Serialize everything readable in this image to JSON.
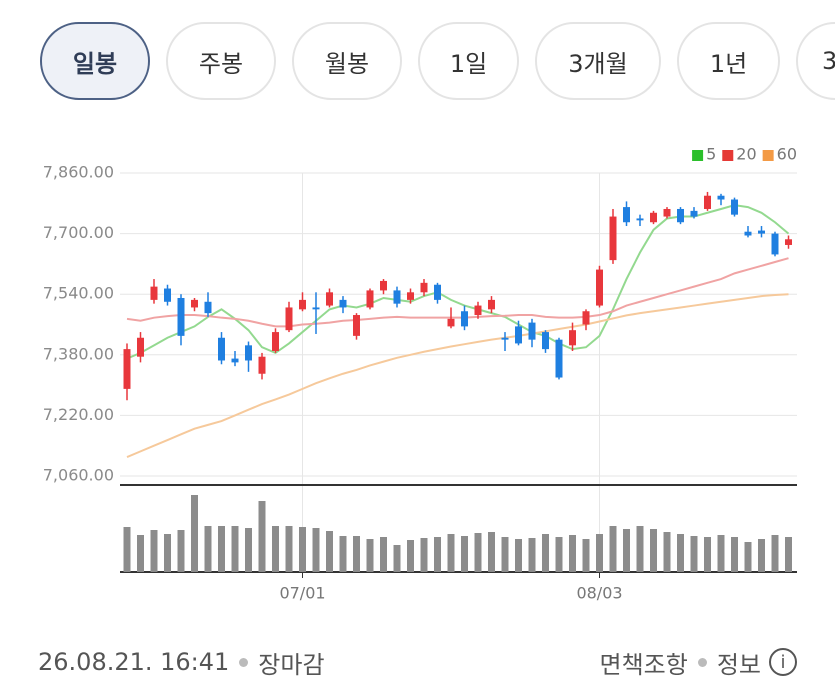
{
  "tabs": [
    "일봉",
    "주봉",
    "월봉",
    "1일",
    "3개월",
    "1년",
    "3"
  ],
  "selected_tab": 0,
  "chart_data": {
    "type": "candlestick",
    "categories": [
      null,
      null,
      null,
      null,
      null,
      null,
      null,
      null,
      null,
      null,
      null,
      null,
      null,
      "07/01",
      null,
      null,
      null,
      null,
      null,
      null,
      null,
      null,
      null,
      null,
      null,
      null,
      null,
      null,
      null,
      null,
      null,
      null,
      null,
      null,
      null,
      "08/03",
      null,
      null,
      null,
      null,
      null,
      null,
      null,
      null,
      null,
      null,
      null,
      null,
      null,
      null
    ],
    "open": [
      7290,
      7375,
      7525,
      7555,
      7530,
      7505,
      7520,
      7425,
      7370,
      7405,
      7330,
      7390,
      7445,
      7500,
      7505,
      7510,
      7525,
      7430,
      7505,
      7550,
      7550,
      7525,
      7545,
      7565,
      7455,
      7495,
      7485,
      7500,
      7425,
      7455,
      7465,
      7440,
      7420,
      7405,
      7460,
      7510,
      7630,
      7770,
      7740,
      7730,
      7745,
      7765,
      7760,
      7765,
      7800,
      7790,
      7705,
      7708,
      7700,
      7670
    ],
    "high": [
      7410,
      7440,
      7580,
      7565,
      7540,
      7530,
      7545,
      7440,
      7390,
      7415,
      7385,
      7450,
      7520,
      7545,
      7545,
      7555,
      7535,
      7490,
      7555,
      7580,
      7560,
      7555,
      7580,
      7570,
      7505,
      7510,
      7520,
      7535,
      7440,
      7470,
      7475,
      7445,
      7425,
      7465,
      7500,
      7615,
      7765,
      7785,
      7750,
      7760,
      7770,
      7770,
      7770,
      7810,
      7805,
      7795,
      7720,
      7720,
      7705,
      7695
    ],
    "low": [
      7260,
      7360,
      7515,
      7510,
      7405,
      7495,
      7480,
      7355,
      7350,
      7335,
      7315,
      7385,
      7440,
      7495,
      7435,
      7505,
      7490,
      7420,
      7500,
      7540,
      7505,
      7515,
      7535,
      7515,
      7450,
      7445,
      7475,
      7490,
      7390,
      7405,
      7400,
      7385,
      7315,
      7390,
      7445,
      7505,
      7620,
      7720,
      7720,
      7725,
      7740,
      7725,
      7740,
      7760,
      7775,
      7745,
      7690,
      7690,
      7640,
      7660
    ],
    "close": [
      7395,
      7425,
      7560,
      7520,
      7430,
      7525,
      7490,
      7365,
      7360,
      7365,
      7375,
      7440,
      7505,
      7525,
      7500,
      7545,
      7505,
      7485,
      7550,
      7575,
      7515,
      7545,
      7570,
      7525,
      7475,
      7455,
      7510,
      7525,
      7420,
      7410,
      7420,
      7395,
      7320,
      7445,
      7495,
      7605,
      7745,
      7730,
      7735,
      7755,
      7765,
      7730,
      7745,
      7800,
      7790,
      7750,
      7695,
      7700,
      7645,
      7685
    ],
    "up_color": "#e8373c",
    "down_color": "#1f7fe0",
    "series": [
      {
        "name": "5",
        "color": "#2bbf2b",
        "line_color": "#93d98f",
        "values": [
          7370,
          7385,
          7405,
          7425,
          7440,
          7455,
          7480,
          7500,
          7475,
          7445,
          7400,
          7385,
          7410,
          7440,
          7470,
          7500,
          7510,
          7505,
          7515,
          7530,
          7525,
          7520,
          7535,
          7545,
          7525,
          7510,
          7500,
          7490,
          7480,
          7460,
          7440,
          7430,
          7410,
          7395,
          7400,
          7430,
          7500,
          7580,
          7650,
          7710,
          7740,
          7745,
          7745,
          7755,
          7765,
          7775,
          7770,
          7755,
          7730,
          7700
        ]
      },
      {
        "name": "20",
        "color": "#e53935",
        "line_color": "#f0a3a3",
        "values": [
          7475,
          7470,
          7478,
          7482,
          7485,
          7485,
          7482,
          7478,
          7475,
          7470,
          7462,
          7455,
          7455,
          7460,
          7462,
          7465,
          7470,
          7472,
          7475,
          7478,
          7480,
          7478,
          7478,
          7478,
          7478,
          7478,
          7480,
          7482,
          7483,
          7485,
          7485,
          7480,
          7478,
          7478,
          7480,
          7485,
          7495,
          7510,
          7520,
          7530,
          7540,
          7550,
          7560,
          7570,
          7580,
          7595,
          7605,
          7615,
          7625,
          7635
        ]
      },
      {
        "name": "60",
        "color": "#f39a45",
        "line_color": "#f6c99b",
        "values": [
          7110,
          7125,
          7140,
          7155,
          7170,
          7185,
          7195,
          7205,
          7220,
          7235,
          7250,
          7262,
          7275,
          7290,
          7305,
          7318,
          7330,
          7340,
          7352,
          7362,
          7372,
          7380,
          7388,
          7395,
          7402,
          7408,
          7414,
          7420,
          7425,
          7430,
          7436,
          7442,
          7448,
          7454,
          7460,
          7468,
          7476,
          7484,
          7490,
          7495,
          7500,
          7505,
          7510,
          7515,
          7520,
          7525,
          7530,
          7535,
          7538,
          7540
        ]
      }
    ],
    "volume": [
      45,
      37,
      42,
      38,
      42,
      77,
      46,
      46,
      46,
      44,
      71,
      46,
      46,
      45,
      44,
      41,
      36,
      36,
      33,
      35,
      27,
      32,
      34,
      35,
      38,
      36,
      39,
      40,
      35,
      33,
      34,
      38,
      35,
      37,
      33,
      38,
      46,
      43,
      46,
      43,
      40,
      38,
      36,
      35,
      37,
      35,
      30,
      33,
      37,
      35
    ],
    "volume_color": "#8c8c8c",
    "volume_ylim": [
      0,
      80
    ],
    "ylim": [
      7060,
      7860
    ],
    "yticks": [
      {
        "value": 7060,
        "label": "7,060.00"
      },
      {
        "value": 7220,
        "label": "7,220.00"
      },
      {
        "value": 7380,
        "label": "7,380.00"
      },
      {
        "value": 7540,
        "label": "7,540.00"
      },
      {
        "value": 7700,
        "label": "7,700.00"
      },
      {
        "value": 7860,
        "label": "7,860.00"
      }
    ],
    "grid": true,
    "legend": "top-right"
  },
  "footer": {
    "timestamp": "26.08.21. 16:41",
    "status": "장마감",
    "disclaimer": "면책조항",
    "info": "정보"
  }
}
